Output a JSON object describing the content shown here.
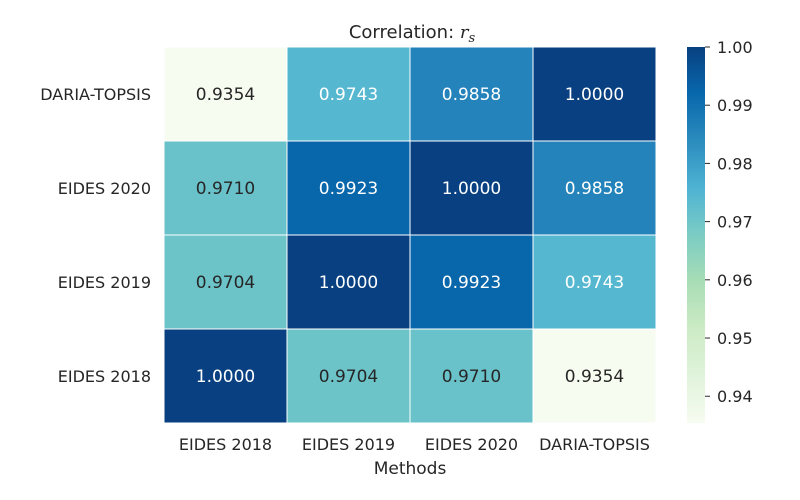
{
  "chart_data": {
    "type": "heatmap",
    "title_prefix": "Correlation: ",
    "title_var": "r",
    "title_sub": "s",
    "xlabel": "Methods",
    "ylabel": "",
    "x_categories": [
      "EIDES 2018",
      "EIDES 2019",
      "EIDES 2020",
      "DARIA-TOPSIS"
    ],
    "y_categories": [
      "DARIA-TOPSIS",
      "EIDES 2020",
      "EIDES 2019",
      "EIDES 2018"
    ],
    "values": [
      [
        0.9354,
        0.9743,
        0.9858,
        1.0
      ],
      [
        0.971,
        0.9923,
        1.0,
        0.9858
      ],
      [
        0.9704,
        1.0,
        0.9923,
        0.9743
      ],
      [
        1.0,
        0.9704,
        0.971,
        0.9354
      ]
    ],
    "colorbar": {
      "min": 0.9354,
      "max": 1.0,
      "ticks": [
        "0.94",
        "0.95",
        "0.96",
        "0.97",
        "0.98",
        "0.99",
        "1.00"
      ],
      "colormap": "GnBu",
      "stops": [
        "#f7fcf0",
        "#e0f3db",
        "#ccebc5",
        "#a8ddb5",
        "#7bccc4",
        "#4eb3d3",
        "#2b8cbe",
        "#0868ac",
        "#084081"
      ]
    },
    "annotation_precision": 4
  }
}
